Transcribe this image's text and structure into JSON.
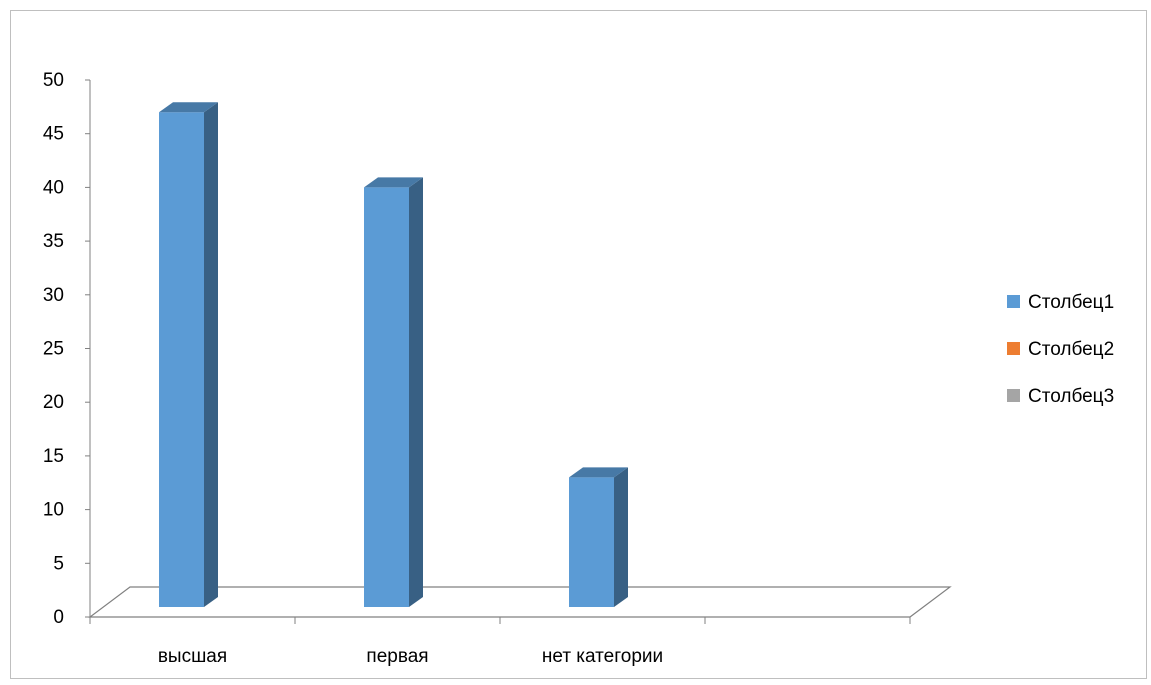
{
  "chart_data": {
    "type": "bar",
    "categories": [
      "высшая",
      "первая",
      "нет категории",
      ""
    ],
    "series": [
      {
        "name": "Столбец1",
        "values": [
          47,
          40,
          13,
          null
        ],
        "color": "#5B9BD5"
      },
      {
        "name": "Столбец2",
        "values": [
          null,
          null,
          null,
          null
        ],
        "color": "#ED7D31"
      },
      {
        "name": "Столбец3",
        "values": [
          null,
          null,
          null,
          null
        ],
        "color": "#A5A5A5"
      }
    ],
    "y_ticks": [
      "0",
      "5",
      "10",
      "15",
      "20",
      "25",
      "30",
      "35",
      "40",
      "45",
      "50"
    ],
    "ylim": [
      0,
      50
    ],
    "legend_position": "right",
    "style": "3d-column",
    "grid": false
  }
}
